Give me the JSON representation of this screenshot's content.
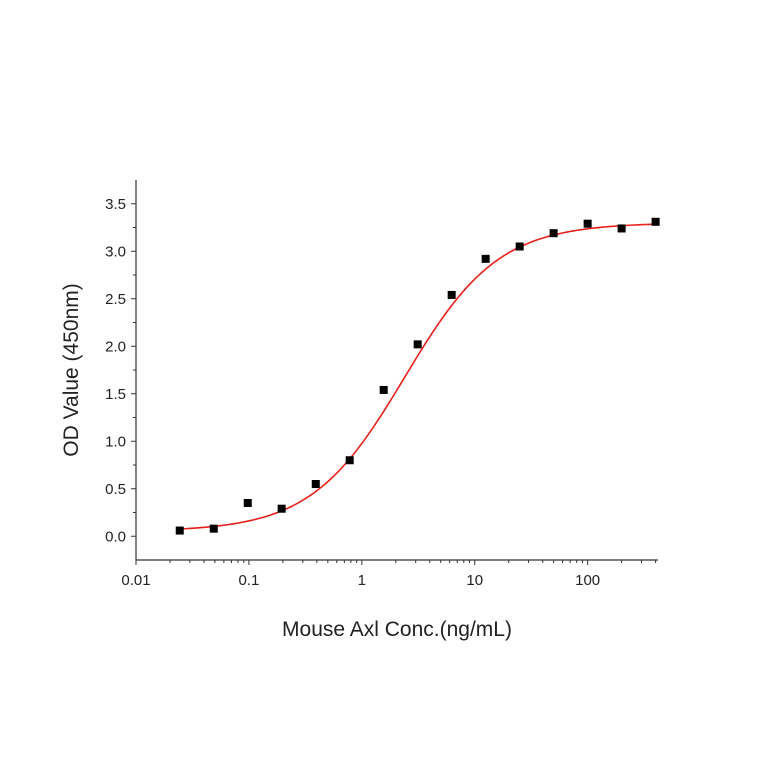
{
  "chart_data": {
    "type": "scatter",
    "title": "",
    "xlabel": "Mouse Axl Conc.(ng/mL)",
    "ylabel": "OD Value (450nm)",
    "x_scale": "log",
    "xlim": [
      0.01,
      420
    ],
    "ylim": [
      -0.25,
      3.75
    ],
    "x_ticks": [
      {
        "value": 0.01,
        "label": "0.01"
      },
      {
        "value": 0.1,
        "label": "0.1"
      },
      {
        "value": 1,
        "label": "1"
      },
      {
        "value": 10,
        "label": "10"
      },
      {
        "value": 100,
        "label": "100"
      }
    ],
    "y_ticks": [
      {
        "value": 0.0,
        "label": "0.0"
      },
      {
        "value": 0.5,
        "label": "0.5"
      },
      {
        "value": 1.0,
        "label": "1.0"
      },
      {
        "value": 1.5,
        "label": "1.5"
      },
      {
        "value": 2.0,
        "label": "2.0"
      },
      {
        "value": 2.5,
        "label": "2.5"
      },
      {
        "value": 3.0,
        "label": "3.0"
      },
      {
        "value": 3.5,
        "label": "3.5"
      }
    ],
    "grid": false,
    "series": [
      {
        "type": "scatter",
        "marker": "square",
        "color": "#000000",
        "x": [
          0.0244,
          0.0488,
          0.0977,
          0.195,
          0.391,
          0.781,
          1.5625,
          3.125,
          6.25,
          12.5,
          25,
          50,
          100,
          200,
          400
        ],
        "y": [
          0.06,
          0.08,
          0.35,
          0.29,
          0.55,
          0.8,
          1.54,
          2.02,
          2.54,
          2.92,
          3.05,
          3.19,
          3.29,
          3.24,
          3.31
        ]
      },
      {
        "type": "line",
        "fit": "4PL",
        "color": "#e8201c",
        "params": {
          "bottom": 0.05,
          "top": 3.3,
          "ec50": 2.4,
          "hill": 1.05
        },
        "x_range": [
          0.0244,
          400
        ]
      }
    ]
  }
}
